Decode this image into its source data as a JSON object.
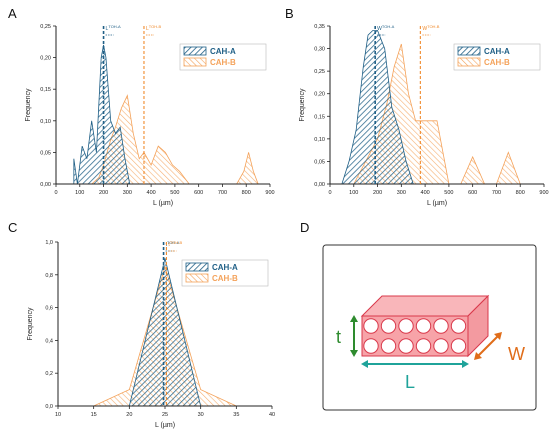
{
  "colors": {
    "series_a_stroke": "#1f5f86",
    "series_a_fill": "#5a9fc7",
    "series_b_stroke": "#f4a25a",
    "series_b_fill": "#fad3ac",
    "mean_a": "#1f5f86",
    "mean_b": "#f08a2c",
    "block_fill": "#f7a3a8",
    "block_stroke": "#d9394b",
    "dim_t": "#2e8b2e",
    "dim_l": "#1fa39a",
    "dim_w": "#e06d1a"
  },
  "chart_data": [
    {
      "panel": "A",
      "type": "area",
      "xlabel": "L (µm)",
      "ylabel": "Frequency",
      "xlim": [
        0,
        900
      ],
      "ylim": [
        0,
        0.25
      ],
      "xticks": [
        0,
        100,
        200,
        300,
        400,
        500,
        600,
        700,
        800,
        900
      ],
      "yticks": [
        0.0,
        0.05,
        0.1,
        0.15,
        0.2,
        0.25
      ],
      "xtick_labels": [
        "0",
        "100",
        "200",
        "300",
        "400",
        "500",
        "600",
        "700",
        "800",
        "900"
      ],
      "ytick_labels": [
        "0,00",
        "0,05",
        "0,10",
        "0,15",
        "0,20",
        "0,25"
      ],
      "legend": [
        "CAH-A",
        "CAH-B"
      ],
      "legend_position": "top-right",
      "grid": false,
      "series": [
        {
          "name": "CAH-A",
          "x": [
            75,
            90,
            110,
            130,
            150,
            170,
            190,
            200,
            210,
            230,
            250,
            270,
            290,
            310
          ],
          "y": [
            0.04,
            0.0,
            0.06,
            0.04,
            0.1,
            0.05,
            0.2,
            0.22,
            0.2,
            0.1,
            0.08,
            0.09,
            0.04,
            0.0
          ]
        },
        {
          "name": "CAH-B",
          "x": [
            150,
            180,
            200,
            230,
            250,
            275,
            300,
            325,
            350,
            370,
            400,
            430,
            460,
            490,
            520,
            560,
            600,
            640,
            700,
            760,
            790,
            810,
            830,
            850
          ],
          "y": [
            0.0,
            0.01,
            0.03,
            0.07,
            0.09,
            0.12,
            0.14,
            0.08,
            0.04,
            0.05,
            0.03,
            0.06,
            0.05,
            0.03,
            0.02,
            0.0,
            0.0,
            0.0,
            0.0,
            0.0,
            0.02,
            0.05,
            0.02,
            0.0
          ]
        }
      ],
      "mean_lines": [
        {
          "label": "L",
          "sup": "TOH-A",
          "value": 200
        },
        {
          "label": "L",
          "sup": "TOH-B",
          "value": 370
        }
      ]
    },
    {
      "panel": "B",
      "type": "area",
      "xlabel": "L (µm)",
      "ylabel": "Frequency",
      "xlim": [
        0,
        900
      ],
      "ylim": [
        0,
        0.35
      ],
      "xticks": [
        0,
        100,
        200,
        300,
        400,
        500,
        600,
        700,
        800,
        900
      ],
      "yticks": [
        0.0,
        0.05,
        0.1,
        0.15,
        0.2,
        0.25,
        0.3,
        0.35
      ],
      "xtick_labels": [
        "0",
        "100",
        "200",
        "300",
        "400",
        "500",
        "600",
        "700",
        "800",
        "900"
      ],
      "ytick_labels": [
        "0,00",
        "0,05",
        "0,10",
        "0,15",
        "0,20",
        "0,25",
        "0,30",
        "0,35"
      ],
      "legend": [
        "CAH-A",
        "CAH-B"
      ],
      "legend_position": "top-right",
      "grid": false,
      "series": [
        {
          "name": "CAH-A",
          "x": [
            50,
            80,
            110,
            140,
            160,
            180,
            200,
            230,
            260,
            290,
            320,
            350
          ],
          "y": [
            0.0,
            0.05,
            0.12,
            0.26,
            0.33,
            0.34,
            0.34,
            0.3,
            0.17,
            0.12,
            0.05,
            0.0
          ]
        },
        {
          "name": "CAH-B",
          "x": [
            100,
            150,
            200,
            240,
            270,
            300,
            330,
            360,
            400,
            450,
            500,
            550,
            600,
            650,
            700,
            750,
            800
          ],
          "y": [
            0.0,
            0.05,
            0.1,
            0.18,
            0.26,
            0.31,
            0.2,
            0.14,
            0.14,
            0.14,
            0.0,
            0.0,
            0.06,
            0.0,
            0.0,
            0.07,
            0.0
          ]
        }
      ],
      "mean_lines": [
        {
          "label": "W",
          "sup": "TOH-A",
          "value": 190
        },
        {
          "label": "W",
          "sup": "TOH-B",
          "value": 380
        }
      ]
    },
    {
      "panel": "C",
      "type": "area",
      "xlabel": "L (µm)",
      "ylabel": "Frequency",
      "xlim": [
        10,
        40
      ],
      "ylim": [
        0,
        1.0
      ],
      "xticks": [
        10,
        15,
        20,
        25,
        30,
        35,
        40
      ],
      "yticks": [
        0.0,
        0.2,
        0.4,
        0.6,
        0.8,
        1.0
      ],
      "xtick_labels": [
        "10",
        "15",
        "20",
        "25",
        "30",
        "35",
        "40"
      ],
      "ytick_labels": [
        "0,0",
        "0,2",
        "0,4",
        "0,6",
        "0,8",
        "1,0"
      ],
      "legend": [
        "CAH-A",
        "CAH-B"
      ],
      "legend_position": "top-right",
      "grid": false,
      "series": [
        {
          "name": "CAH-A",
          "x": [
            20,
            25,
            30
          ],
          "y": [
            0.0,
            0.9,
            0.0
          ]
        },
        {
          "name": "CAH-B",
          "x": [
            15,
            20,
            25,
            30,
            35
          ],
          "y": [
            0.0,
            0.1,
            0.85,
            0.1,
            0.0
          ]
        }
      ],
      "mean_lines": [
        {
          "label": "t",
          "sup": "TOH-A",
          "value": 24.8
        },
        {
          "label": "t",
          "sup": "TOH-B",
          "value": 25.2
        }
      ]
    }
  ],
  "panel_labels": [
    "A",
    "B",
    "C",
    "D"
  ],
  "diagram": {
    "dim_t": "t",
    "dim_l": "L",
    "dim_w": "W"
  }
}
